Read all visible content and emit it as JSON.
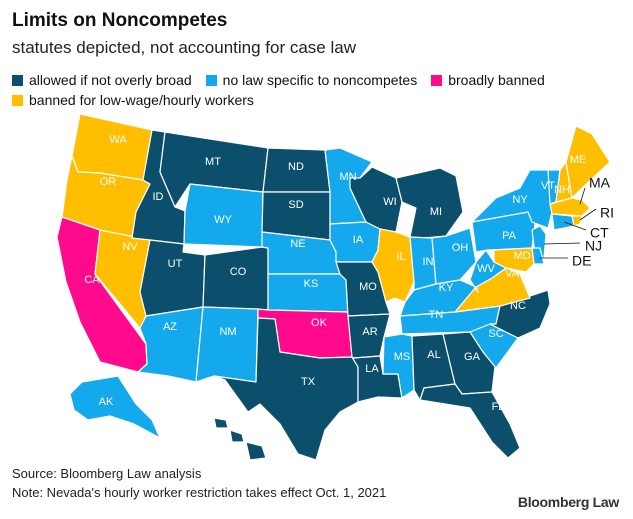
{
  "title": "Limits on Noncompetes",
  "subtitle": "statutes depicted, not accounting for case law",
  "colors": {
    "allowed": "#0b4f6c",
    "no_law": "#14a9ec",
    "banned": "#ff0a8c",
    "low_wage": "#ffbf00",
    "border": "#ffffff"
  },
  "legend": [
    {
      "key": "allowed",
      "label": "allowed if not overly broad"
    },
    {
      "key": "no_law",
      "label": "no law specific to noncompetes"
    },
    {
      "key": "banned",
      "label": "broadly banned"
    },
    {
      "key": "low_wage",
      "label": "banned for low-wage/hourly workers"
    }
  ],
  "states": [
    {
      "abbr": "WA",
      "category": "low_wage"
    },
    {
      "abbr": "OR",
      "category": "low_wage"
    },
    {
      "abbr": "CA",
      "category": "banned"
    },
    {
      "abbr": "NV",
      "category": "low_wage"
    },
    {
      "abbr": "ID",
      "category": "allowed"
    },
    {
      "abbr": "MT",
      "category": "allowed"
    },
    {
      "abbr": "WY",
      "category": "no_law"
    },
    {
      "abbr": "UT",
      "category": "allowed"
    },
    {
      "abbr": "CO",
      "category": "allowed"
    },
    {
      "abbr": "AZ",
      "category": "no_law"
    },
    {
      "abbr": "NM",
      "category": "no_law"
    },
    {
      "abbr": "ND",
      "category": "allowed"
    },
    {
      "abbr": "SD",
      "category": "allowed"
    },
    {
      "abbr": "NE",
      "category": "no_law"
    },
    {
      "abbr": "KS",
      "category": "no_law"
    },
    {
      "abbr": "OK",
      "category": "banned"
    },
    {
      "abbr": "TX",
      "category": "allowed"
    },
    {
      "abbr": "MN",
      "category": "no_law"
    },
    {
      "abbr": "IA",
      "category": "no_law"
    },
    {
      "abbr": "MO",
      "category": "allowed"
    },
    {
      "abbr": "AR",
      "category": "allowed"
    },
    {
      "abbr": "LA",
      "category": "allowed"
    },
    {
      "abbr": "WI",
      "category": "allowed"
    },
    {
      "abbr": "IL",
      "category": "low_wage"
    },
    {
      "abbr": "MI",
      "category": "allowed"
    },
    {
      "abbr": "IN",
      "category": "no_law"
    },
    {
      "abbr": "OH",
      "category": "no_law"
    },
    {
      "abbr": "KY",
      "category": "no_law"
    },
    {
      "abbr": "TN",
      "category": "no_law"
    },
    {
      "abbr": "MS",
      "category": "no_law"
    },
    {
      "abbr": "AL",
      "category": "allowed"
    },
    {
      "abbr": "GA",
      "category": "allowed"
    },
    {
      "abbr": "FL",
      "category": "allowed"
    },
    {
      "abbr": "SC",
      "category": "no_law"
    },
    {
      "abbr": "NC",
      "category": "allowed"
    },
    {
      "abbr": "VA",
      "category": "low_wage"
    },
    {
      "abbr": "WV",
      "category": "no_law"
    },
    {
      "abbr": "PA",
      "category": "no_law"
    },
    {
      "abbr": "NY",
      "category": "no_law"
    },
    {
      "abbr": "VT",
      "category": "no_law"
    },
    {
      "abbr": "NH",
      "category": "low_wage"
    },
    {
      "abbr": "ME",
      "category": "low_wage"
    },
    {
      "abbr": "MA",
      "category": "low_wage"
    },
    {
      "abbr": "RI",
      "category": "low_wage"
    },
    {
      "abbr": "CT",
      "category": "no_law"
    },
    {
      "abbr": "NJ",
      "category": "no_law"
    },
    {
      "abbr": "DE",
      "category": "no_law"
    },
    {
      "abbr": "MD",
      "category": "low_wage"
    },
    {
      "abbr": "AK",
      "category": "no_law"
    },
    {
      "abbr": "HI",
      "category": "allowed"
    }
  ],
  "footer": {
    "source": "Source: Bloomberg Law analysis",
    "note": "Note: Nevada's hourly worker restriction takes effect Oct. 1, 2021"
  },
  "brand": "Bloomberg Law"
}
